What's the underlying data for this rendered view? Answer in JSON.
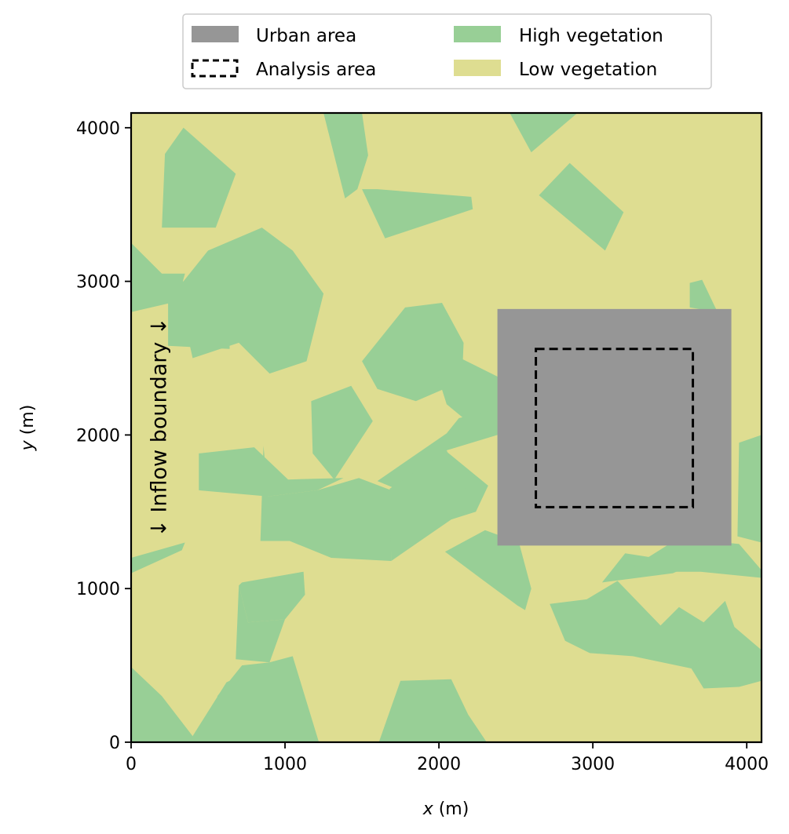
{
  "chart_data": {
    "type": "map",
    "xlabel_var": "x",
    "xlabel_unit": " (m)",
    "ylabel_var": "y",
    "ylabel_unit": " (m)",
    "xlim": [
      0,
      4096
    ],
    "ylim": [
      0,
      4096
    ],
    "xticks": [
      0,
      1000,
      2000,
      3000,
      4000
    ],
    "yticks": [
      0,
      1000,
      2000,
      3000,
      4000
    ],
    "colors": {
      "urban": "#969696",
      "high_vegetation": "#98cf96",
      "low_vegetation": "#dedd91"
    },
    "legend": {
      "placement": "top-center",
      "entries": [
        {
          "key": "urban",
          "label": "Urban area",
          "style": "filled",
          "color": "#969696"
        },
        {
          "key": "analysis",
          "label": "Analysis area",
          "style": "dashed",
          "color": "#000000"
        },
        {
          "key": "high",
          "label": "High vegetation",
          "style": "filled",
          "color": "#98cf96"
        },
        {
          "key": "low",
          "label": "Low vegetation",
          "style": "filled",
          "color": "#dedd91"
        }
      ]
    },
    "background_class": "low_vegetation",
    "urban_area": {
      "x": [
        2380,
        3900
      ],
      "y": [
        1280,
        2820
      ]
    },
    "analysis_area": {
      "x": [
        2630,
        3650
      ],
      "y": [
        1530,
        2560
      ]
    },
    "annotation": {
      "text": "↓ Inflow boundary ↓",
      "x": 190,
      "y": 2050,
      "rotation": -90
    },
    "high_vegetation_patches": [
      [
        [
          0,
          3250
        ],
        [
          200,
          3050
        ],
        [
          350,
          3050
        ],
        [
          300,
          2870
        ],
        [
          0,
          2800
        ]
      ],
      [
        [
          220,
          3830
        ],
        [
          340,
          4000
        ],
        [
          680,
          3700
        ],
        [
          550,
          3350
        ],
        [
          200,
          3350
        ]
      ],
      [
        [
          500,
          3200
        ],
        [
          850,
          3350
        ],
        [
          1050,
          3200
        ],
        [
          1250,
          2920
        ],
        [
          1140,
          2480
        ],
        [
          900,
          2400
        ],
        [
          700,
          2600
        ],
        [
          400,
          2500
        ],
        [
          300,
          2950
        ]
      ],
      [
        [
          240,
          3000
        ],
        [
          360,
          3000
        ],
        [
          640,
          3000
        ],
        [
          640,
          2560
        ],
        [
          240,
          2580
        ]
      ],
      [
        [
          1250,
          4096
        ],
        [
          1500,
          4096
        ],
        [
          1540,
          3820
        ],
        [
          1470,
          3600
        ],
        [
          1390,
          3540
        ]
      ],
      [
        [
          1500,
          3600
        ],
        [
          1650,
          3280
        ],
        [
          2220,
          3470
        ],
        [
          2210,
          3550
        ],
        [
          1600,
          3600
        ]
      ],
      [
        [
          2460,
          4096
        ],
        [
          2900,
          4096
        ],
        [
          2600,
          3840
        ]
      ],
      [
        [
          2650,
          3560
        ],
        [
          2850,
          3770
        ],
        [
          3200,
          3450
        ],
        [
          3080,
          3200
        ]
      ],
      [
        [
          1500,
          2480
        ],
        [
          1780,
          2830
        ],
        [
          2020,
          2860
        ],
        [
          2160,
          2600
        ],
        [
          2150,
          2350
        ],
        [
          1850,
          2220
        ],
        [
          1600,
          2300
        ]
      ],
      [
        [
          1940,
          2550
        ],
        [
          2020,
          2560
        ],
        [
          2500,
          2320
        ],
        [
          2460,
          2080
        ],
        [
          2220,
          2060
        ],
        [
          2050,
          2200
        ]
      ],
      [
        [
          440,
          1880
        ],
        [
          800,
          1920
        ],
        [
          1020,
          1710
        ],
        [
          1380,
          1720
        ],
        [
          1210,
          1640
        ],
        [
          890,
          1600
        ],
        [
          440,
          1640
        ]
      ],
      [
        [
          1170,
          2220
        ],
        [
          1430,
          2320
        ],
        [
          1570,
          2090
        ],
        [
          1320,
          1710
        ],
        [
          1180,
          1880
        ]
      ],
      [
        [
          860,
          1930
        ],
        [
          840,
          1310
        ],
        [
          1030,
          1310
        ],
        [
          1300,
          1200
        ],
        [
          1690,
          1180
        ],
        [
          1690,
          1640
        ],
        [
          1480,
          1720
        ],
        [
          1210,
          1640
        ],
        [
          890,
          1600
        ]
      ],
      [
        [
          1600,
          1700
        ],
        [
          2050,
          2010
        ],
        [
          2130,
          2110
        ],
        [
          2560,
          2210
        ],
        [
          2380,
          2000
        ],
        [
          2050,
          1900
        ],
        [
          1720,
          1650
        ]
      ],
      [
        [
          2040,
          1900
        ],
        [
          2320,
          1670
        ],
        [
          2240,
          1500
        ],
        [
          2080,
          1450
        ]
      ],
      [
        [
          1680,
          1650
        ],
        [
          2050,
          1900
        ],
        [
          2230,
          1530
        ],
        [
          2080,
          1450
        ],
        [
          1690,
          1180
        ]
      ],
      [
        [
          2160,
          1160
        ],
        [
          2590,
          1360
        ],
        [
          2420,
          1280
        ]
      ],
      [
        [
          2040,
          1240
        ],
        [
          2280,
          1060
        ],
        [
          2510,
          890
        ],
        [
          2560,
          860
        ],
        [
          2600,
          1000
        ],
        [
          2520,
          1300
        ],
        [
          2300,
          1380
        ]
      ],
      [
        [
          3950,
          1950
        ],
        [
          4096,
          2000
        ],
        [
          4096,
          1300
        ],
        [
          3940,
          1340
        ]
      ],
      [
        [
          3630,
          2990
        ],
        [
          3710,
          3010
        ],
        [
          3810,
          2800
        ],
        [
          3630,
          2830
        ]
      ],
      [
        [
          3060,
          1040
        ],
        [
          3210,
          1230
        ],
        [
          3660,
          1160
        ],
        [
          3520,
          1100
        ]
      ],
      [
        [
          3210,
          1110
        ],
        [
          3560,
          1330
        ],
        [
          3950,
          1290
        ],
        [
          4096,
          1120
        ],
        [
          4096,
          1070
        ],
        [
          3700,
          1110
        ]
      ],
      [
        [
          2720,
          900
        ],
        [
          2960,
          930
        ],
        [
          3160,
          1050
        ],
        [
          3440,
          760
        ],
        [
          3560,
          880
        ],
        [
          3720,
          780
        ],
        [
          3860,
          920
        ],
        [
          3920,
          750
        ],
        [
          4096,
          600
        ],
        [
          4096,
          400
        ],
        [
          3950,
          360
        ],
        [
          3640,
          480
        ],
        [
          3260,
          560
        ],
        [
          2980,
          580
        ],
        [
          2820,
          660
        ]
      ],
      [
        [
          3640,
          480
        ],
        [
          3700,
          550
        ],
        [
          3950,
          360
        ],
        [
          3720,
          350
        ]
      ],
      [
        [
          0,
          490
        ],
        [
          200,
          300
        ],
        [
          400,
          40
        ],
        [
          620,
          390
        ],
        [
          900,
          520
        ],
        [
          1050,
          560
        ],
        [
          1220,
          0
        ],
        [
          0,
          0
        ]
      ],
      [
        [
          900,
          520
        ],
        [
          1200,
          0
        ],
        [
          650,
          0
        ],
        [
          560,
          300
        ],
        [
          720,
          500
        ]
      ],
      [
        [
          700,
          1020
        ],
        [
          720,
          1040
        ],
        [
          1120,
          1110
        ],
        [
          1130,
          960
        ],
        [
          1000,
          800
        ],
        [
          760,
          780
        ]
      ],
      [
        [
          700,
          1020
        ],
        [
          680,
          540
        ],
        [
          900,
          520
        ],
        [
          1000,
          800
        ],
        [
          760,
          780
        ]
      ],
      [
        [
          1610,
          0
        ],
        [
          1750,
          400
        ],
        [
          2080,
          410
        ],
        [
          2190,
          180
        ],
        [
          2310,
          0
        ]
      ],
      [
        [
          0,
          1200
        ],
        [
          350,
          1300
        ],
        [
          330,
          1250
        ],
        [
          0,
          1100
        ]
      ]
    ]
  }
}
